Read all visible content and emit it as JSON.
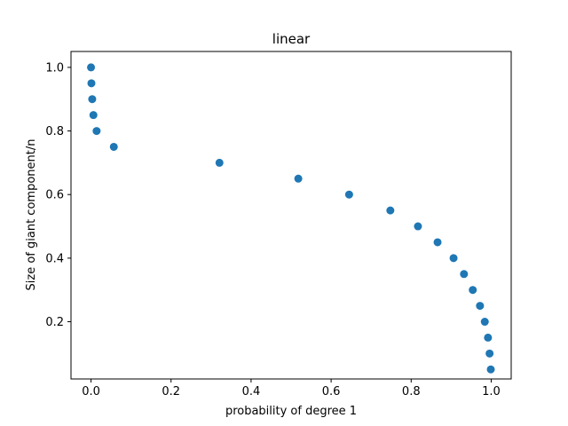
{
  "chart_data": {
    "type": "scatter",
    "title": "linear",
    "xlabel": "probability of degree 1",
    "ylabel": "Size of giant component/n",
    "xlim": [
      -0.05,
      1.05
    ],
    "ylim": [
      0.02,
      1.05
    ],
    "x_ticks": [
      0.0,
      0.2,
      0.4,
      0.6,
      0.8,
      1.0
    ],
    "x_tick_labels": [
      "0.0",
      "0.2",
      "0.4",
      "0.6",
      "0.8",
      "1.0"
    ],
    "y_ticks": [
      0.2,
      0.4,
      0.6,
      0.8,
      1.0
    ],
    "y_tick_labels": [
      "0.2",
      "0.4",
      "0.6",
      "0.8",
      "1.0"
    ],
    "grid": false,
    "marker_color": "#1f77b4",
    "series": [
      {
        "points": [
          {
            "x": 0.0,
            "y": 1.0
          },
          {
            "x": 0.001,
            "y": 0.95
          },
          {
            "x": 0.003,
            "y": 0.9
          },
          {
            "x": 0.006,
            "y": 0.85
          },
          {
            "x": 0.014,
            "y": 0.8
          },
          {
            "x": 0.057,
            "y": 0.75
          },
          {
            "x": 0.321,
            "y": 0.7
          },
          {
            "x": 0.518,
            "y": 0.65
          },
          {
            "x": 0.645,
            "y": 0.6
          },
          {
            "x": 0.748,
            "y": 0.55
          },
          {
            "x": 0.817,
            "y": 0.5
          },
          {
            "x": 0.866,
            "y": 0.45
          },
          {
            "x": 0.906,
            "y": 0.4
          },
          {
            "x": 0.932,
            "y": 0.35
          },
          {
            "x": 0.954,
            "y": 0.3
          },
          {
            "x": 0.972,
            "y": 0.25
          },
          {
            "x": 0.984,
            "y": 0.2
          },
          {
            "x": 0.992,
            "y": 0.15
          },
          {
            "x": 0.996,
            "y": 0.1
          },
          {
            "x": 0.999,
            "y": 0.05
          }
        ]
      }
    ]
  }
}
